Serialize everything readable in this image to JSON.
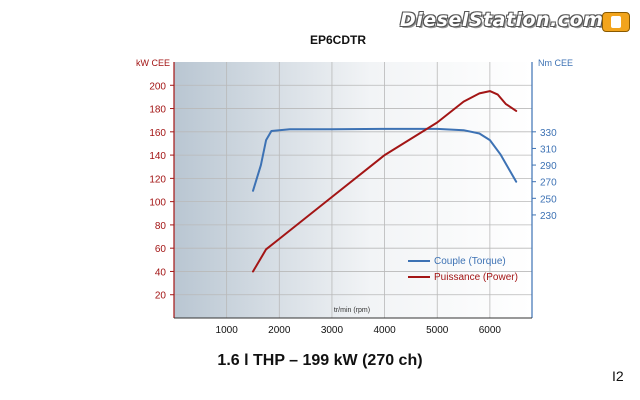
{
  "branding": {
    "site_name": "DieselStation.com"
  },
  "page_number": "I2",
  "subtitle": "1.6 l THP – 199 kW (270 ch)",
  "colors": {
    "power": "#a31515",
    "torque": "#3d72b4",
    "axis_left": "#a31515",
    "axis_right": "#3d72b4",
    "grid": "#b9b9b9",
    "background_left": "#b9c6d2"
  },
  "chart_data": {
    "type": "line",
    "title": "EP6CDTR",
    "xlabel": "tr/min (rpm)",
    "ylabel_left": "kW CEE",
    "ylabel_right": "Nm CEE",
    "xlim": [
      0,
      6800
    ],
    "ylim_left": [
      0,
      220
    ],
    "xticks": [
      1000,
      2000,
      3000,
      4000,
      5000,
      6000
    ],
    "yticks_left": [
      20,
      40,
      60,
      80,
      100,
      120,
      140,
      160,
      180,
      200
    ],
    "yticks_right": [
      230,
      250,
      270,
      290,
      310,
      330
    ],
    "right_axis_mapping": {
      "nm_at_ref1": 330,
      "kw_ref1": 160,
      "nm_per_kw": 1.4
    },
    "legend_position": "bottom-right",
    "series": [
      {
        "name": "Couple (Torque)",
        "axis": "right",
        "color": "#3d72b4",
        "points": [
          [
            1500,
            259
          ],
          [
            1650,
            290
          ],
          [
            1750,
            320
          ],
          [
            1850,
            331
          ],
          [
            2200,
            333
          ],
          [
            3000,
            333
          ],
          [
            4000,
            333.5
          ],
          [
            5000,
            333.5
          ],
          [
            5500,
            332
          ],
          [
            5800,
            328
          ],
          [
            6000,
            320
          ],
          [
            6200,
            303
          ],
          [
            6500,
            270
          ]
        ]
      },
      {
        "name": "Puissance (Power)",
        "axis": "left",
        "color": "#a31515",
        "points": [
          [
            1500,
            40
          ],
          [
            1750,
            59
          ],
          [
            2000,
            68
          ],
          [
            3000,
            104
          ],
          [
            4000,
            140
          ],
          [
            5000,
            168
          ],
          [
            5500,
            186
          ],
          [
            5800,
            193
          ],
          [
            6000,
            195
          ],
          [
            6150,
            192
          ],
          [
            6300,
            184
          ],
          [
            6500,
            178
          ]
        ]
      }
    ]
  }
}
